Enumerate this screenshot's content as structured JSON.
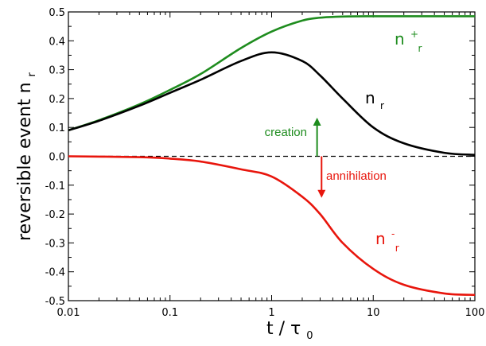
{
  "chart_data": {
    "type": "line",
    "xscale": "log",
    "xlim": [
      0.01,
      100
    ],
    "ylim": [
      -0.5,
      0.5
    ],
    "xticks": [
      {
        "value": 0.01,
        "label": "0.01"
      },
      {
        "value": 0.1,
        "label": "0.1"
      },
      {
        "value": 1,
        "label": "1"
      },
      {
        "value": 10,
        "label": "10"
      },
      {
        "value": 100,
        "label": "100"
      }
    ],
    "yticks": [
      {
        "value": 0.5,
        "label": "0.5"
      },
      {
        "value": 0.4,
        "label": "0.4"
      },
      {
        "value": 0.3,
        "label": "0.3"
      },
      {
        "value": 0.2,
        "label": "0.2"
      },
      {
        "value": 0.1,
        "label": "0.1"
      },
      {
        "value": 0.0,
        "label": "0.0"
      },
      {
        "value": -0.1,
        "label": "-0.1"
      },
      {
        "value": -0.2,
        "label": "-0.2"
      },
      {
        "value": -0.3,
        "label": "-0.3"
      },
      {
        "value": -0.4,
        "label": "-0.4"
      },
      {
        "value": -0.5,
        "label": "-0.5"
      }
    ],
    "xlabel": {
      "main": "t  / τ",
      "sub": "0"
    },
    "ylabel": {
      "main": "reversible event n",
      "sub": "r"
    },
    "grid": false,
    "series": [
      {
        "key": "n_plus",
        "label": {
          "main": "n",
          "sup": "+",
          "sub": "r"
        },
        "color": "#1e8c1e",
        "x": [
          0.01,
          0.02,
          0.05,
          0.1,
          0.2,
          0.5,
          1,
          2,
          3,
          5,
          10,
          20,
          50,
          100
        ],
        "y": [
          0.09,
          0.125,
          0.18,
          0.23,
          0.285,
          0.375,
          0.432,
          0.47,
          0.48,
          0.484,
          0.485,
          0.485,
          0.485,
          0.485
        ]
      },
      {
        "key": "n",
        "label": {
          "main": "n",
          "sub": "r"
        },
        "color": "#000000",
        "x": [
          0.01,
          0.02,
          0.05,
          0.1,
          0.2,
          0.5,
          1,
          2,
          3,
          5,
          10,
          20,
          50,
          100
        ],
        "y": [
          0.09,
          0.123,
          0.175,
          0.22,
          0.265,
          0.33,
          0.36,
          0.33,
          0.28,
          0.2,
          0.1,
          0.045,
          0.012,
          0.005
        ]
      },
      {
        "key": "n_minus",
        "label": {
          "main": "n",
          "sup": "-",
          "sub": "r"
        },
        "color": "#e8150c",
        "x": [
          0.01,
          0.05,
          0.1,
          0.2,
          0.5,
          1,
          2,
          3,
          5,
          10,
          20,
          50,
          100
        ],
        "y": [
          0.0,
          -0.003,
          -0.008,
          -0.018,
          -0.045,
          -0.07,
          -0.14,
          -0.2,
          -0.3,
          -0.39,
          -0.445,
          -0.475,
          -0.48
        ]
      }
    ],
    "reference_line": {
      "y": 0.0,
      "style": "dashed",
      "color": "#000000"
    },
    "annotations": [
      {
        "text": "creation",
        "color": "#1e8c1e",
        "arrow_x": 2.8,
        "arrow_from": 0.0,
        "arrow_to": 0.12
      },
      {
        "text": "annihilation",
        "color": "#e8150c",
        "arrow_x": 3.1,
        "arrow_from": 0.0,
        "arrow_to": -0.13
      }
    ]
  }
}
